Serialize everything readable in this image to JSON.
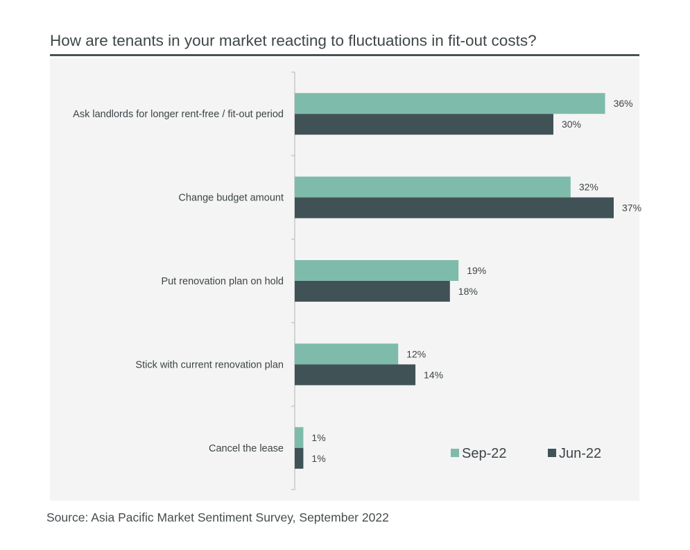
{
  "title": "How are tenants in your market reacting to fluctuations in fit-out costs?",
  "source": "Source: Asia Pacific Market Sentiment Survey, September 2022",
  "colors": {
    "sep22": "#7fbbab",
    "jun22": "#415256",
    "panel": "#f4f4f4",
    "axis": "#c9c9c9"
  },
  "chart_data": {
    "type": "bar",
    "orientation": "horizontal",
    "title": "How are tenants in your market reacting to fluctuations in fit-out costs?",
    "categories": [
      "Ask landlords for longer rent-free / fit-out period",
      "Change budget amount",
      "Put renovation plan on hold",
      "Stick with current renovation plan",
      "Cancel the lease"
    ],
    "series": [
      {
        "name": "Sep-22",
        "values": [
          36,
          32,
          19,
          12,
          1
        ],
        "labels": [
          "36%",
          "32%",
          "19%",
          "12%",
          "1%"
        ]
      },
      {
        "name": "Jun-22",
        "values": [
          30,
          37,
          18,
          14,
          1
        ],
        "labels": [
          "30%",
          "37%",
          "18%",
          "14%",
          "1%"
        ]
      }
    ],
    "unit": "%",
    "xlim": [
      0,
      37
    ],
    "grid": false,
    "legend": "bottom-right"
  }
}
